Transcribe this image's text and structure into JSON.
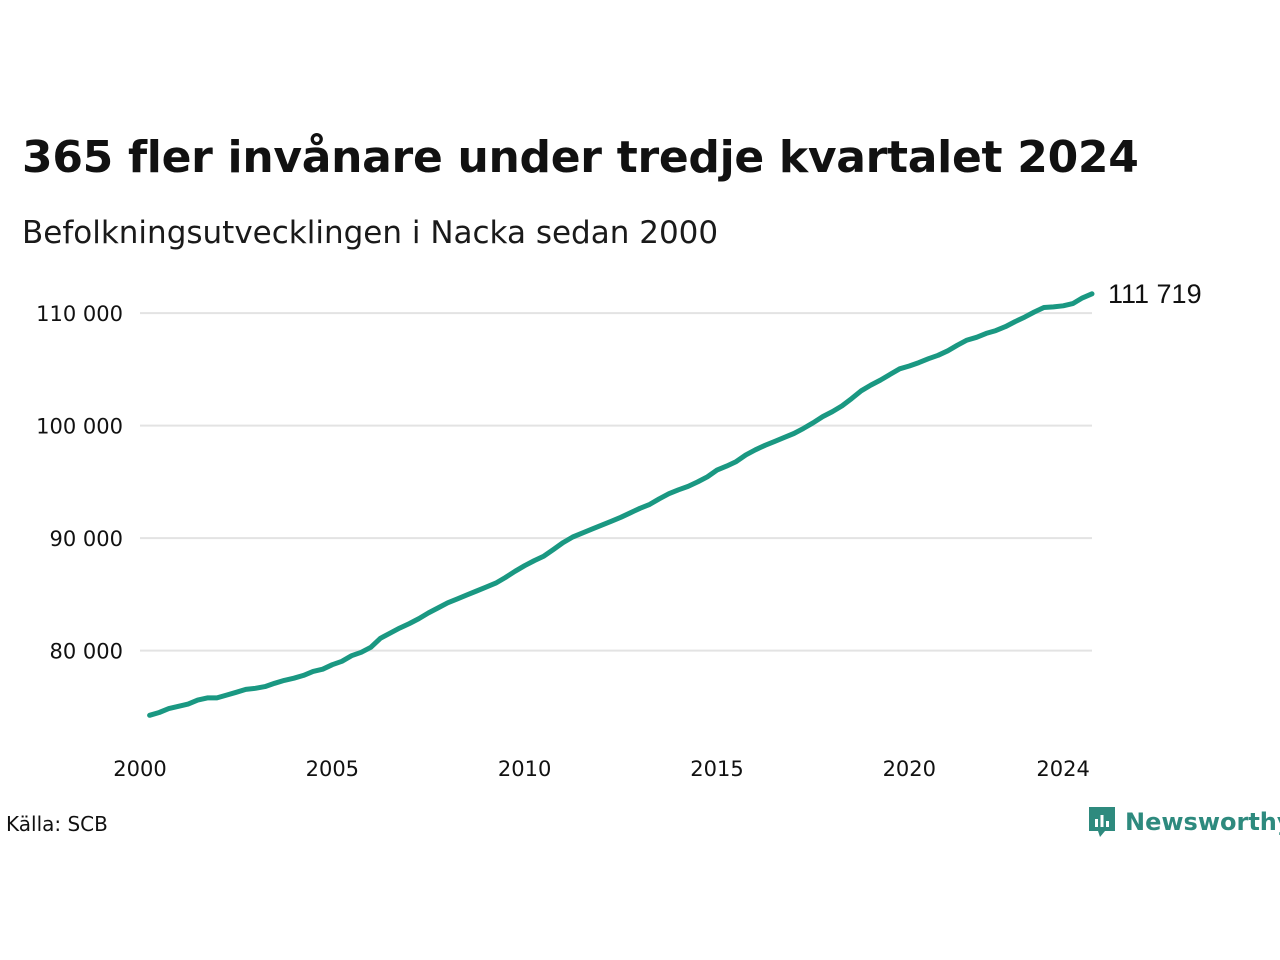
{
  "title": "365 fler invånare under tredje kvartalet 2024",
  "subtitle": "Befolkningsutvecklingen i Nacka sedan 2000",
  "source": "Källa: SCB",
  "brand": {
    "name": "Newsworthy",
    "icon": "newsworthy-logo-icon",
    "color": "#2e8a7e"
  },
  "chart_data": {
    "type": "line",
    "line_color": "#1a9882",
    "grid": true,
    "xlim": [
      2000,
      2024.75
    ],
    "ylim": [
      72500,
      112500
    ],
    "y_ticks": [
      80000,
      90000,
      100000,
      110000
    ],
    "y_tick_labels": [
      "80 000",
      "90 000",
      "100 000",
      "110 000"
    ],
    "x_ticks": [
      2000,
      2005,
      2010,
      2015,
      2020,
      2024
    ],
    "x_tick_labels": [
      "2000",
      "2005",
      "2010",
      "2015",
      "2020",
      "2024"
    ],
    "end_label": "111 719",
    "series": [
      {
        "x": [
          2000.25,
          2000.5,
          2000.75,
          2001,
          2001.25,
          2001.5,
          2001.75,
          2002,
          2002.25,
          2002.5,
          2002.75,
          2003,
          2003.25,
          2003.5,
          2003.75,
          2004,
          2004.25,
          2004.5,
          2004.75,
          2005,
          2005.25,
          2005.5,
          2005.75,
          2006,
          2006.25,
          2006.5,
          2006.75,
          2007,
          2007.25,
          2007.5,
          2007.75,
          2008,
          2008.25,
          2008.5,
          2008.75,
          2009,
          2009.25,
          2009.5,
          2009.75,
          2010,
          2010.25,
          2010.5,
          2010.75,
          2011,
          2011.25,
          2011.5,
          2011.75,
          2012,
          2012.25,
          2012.5,
          2012.75,
          2013,
          2013.25,
          2013.5,
          2013.75,
          2014,
          2014.25,
          2014.5,
          2014.75,
          2015,
          2015.25,
          2015.5,
          2015.75,
          2016,
          2016.25,
          2016.5,
          2016.75,
          2017,
          2017.25,
          2017.5,
          2017.75,
          2018,
          2018.25,
          2018.5,
          2018.75,
          2019,
          2019.25,
          2019.5,
          2019.75,
          2020,
          2020.25,
          2020.5,
          2020.75,
          2021,
          2021.25,
          2021.5,
          2021.75,
          2022,
          2022.25,
          2022.5,
          2022.75,
          2023,
          2023.25,
          2023.5,
          2023.75,
          2024,
          2024.25,
          2024.5,
          2024.75
        ],
        "values": [
          74250,
          74500,
          74850,
          75050,
          75250,
          75600,
          75800,
          75800,
          76050,
          76300,
          76550,
          76650,
          76800,
          77100,
          77350,
          77550,
          77800,
          78150,
          78350,
          78750,
          79050,
          79550,
          79850,
          80300,
          81100,
          81550,
          82000,
          82400,
          82850,
          83350,
          83800,
          84250,
          84600,
          84950,
          85300,
          85650,
          86000,
          86500,
          87050,
          87550,
          88000,
          88400,
          89000,
          89600,
          90100,
          90450,
          90800,
          91150,
          91500,
          91850,
          92250,
          92650,
          93000,
          93500,
          93950,
          94300,
          94600,
          95000,
          95450,
          96050,
          96400,
          96800,
          97400,
          97850,
          98250,
          98600,
          98950,
          99300,
          99750,
          100250,
          100800,
          101250,
          101750,
          102400,
          103100,
          103600,
          104050,
          104550,
          105050,
          105300,
          105600,
          105950,
          106250,
          106650,
          107150,
          107600,
          107850,
          108200,
          108450,
          108800,
          109250,
          109650,
          110100,
          110500,
          110550,
          110650,
          110850,
          111350,
          111719
        ]
      }
    ]
  }
}
